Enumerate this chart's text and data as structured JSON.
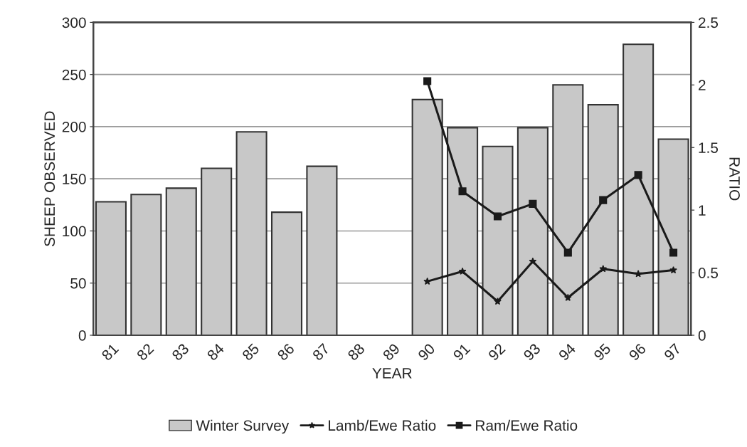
{
  "chart_data": {
    "type": "bar",
    "xlabel": "YEAR",
    "ylabel": "SHEEP OBSERVED",
    "y2label": "RATIO",
    "categories": [
      "81",
      "82",
      "83",
      "84",
      "85",
      "86",
      "87",
      "88",
      "89",
      "90",
      "91",
      "92",
      "93",
      "94",
      "95",
      "96",
      "97"
    ],
    "series": [
      {
        "name": "Winter Survey",
        "color": "#c8c8c8",
        "values": [
          128,
          135,
          141,
          160,
          195,
          118,
          162,
          null,
          null,
          226,
          199,
          181,
          199,
          240,
          221,
          279,
          188
        ]
      },
      {
        "name": "Lamb/Ewe Ratio",
        "type": "line",
        "axis": "y2",
        "marker": "star",
        "color": "#1a1a1a",
        "values": [
          null,
          null,
          null,
          null,
          null,
          null,
          null,
          null,
          null,
          0.43,
          0.51,
          0.27,
          0.59,
          0.3,
          0.53,
          0.49,
          0.52
        ]
      },
      {
        "name": "Ram/Ewe Ratio",
        "type": "line",
        "axis": "y2",
        "marker": "square",
        "color": "#1a1a1a",
        "values": [
          null,
          null,
          null,
          null,
          null,
          null,
          null,
          null,
          null,
          2.03,
          1.15,
          0.95,
          1.05,
          0.66,
          1.08,
          1.28,
          0.66
        ]
      }
    ],
    "ylim": [
      0,
      300
    ],
    "yticks": [
      0,
      50,
      100,
      150,
      200,
      250,
      300
    ],
    "y2lim": [
      0,
      2.5
    ],
    "y2ticks": [
      0,
      0.5,
      1,
      1.5,
      2,
      2.5
    ],
    "grid": "y",
    "legend": "bottom"
  }
}
